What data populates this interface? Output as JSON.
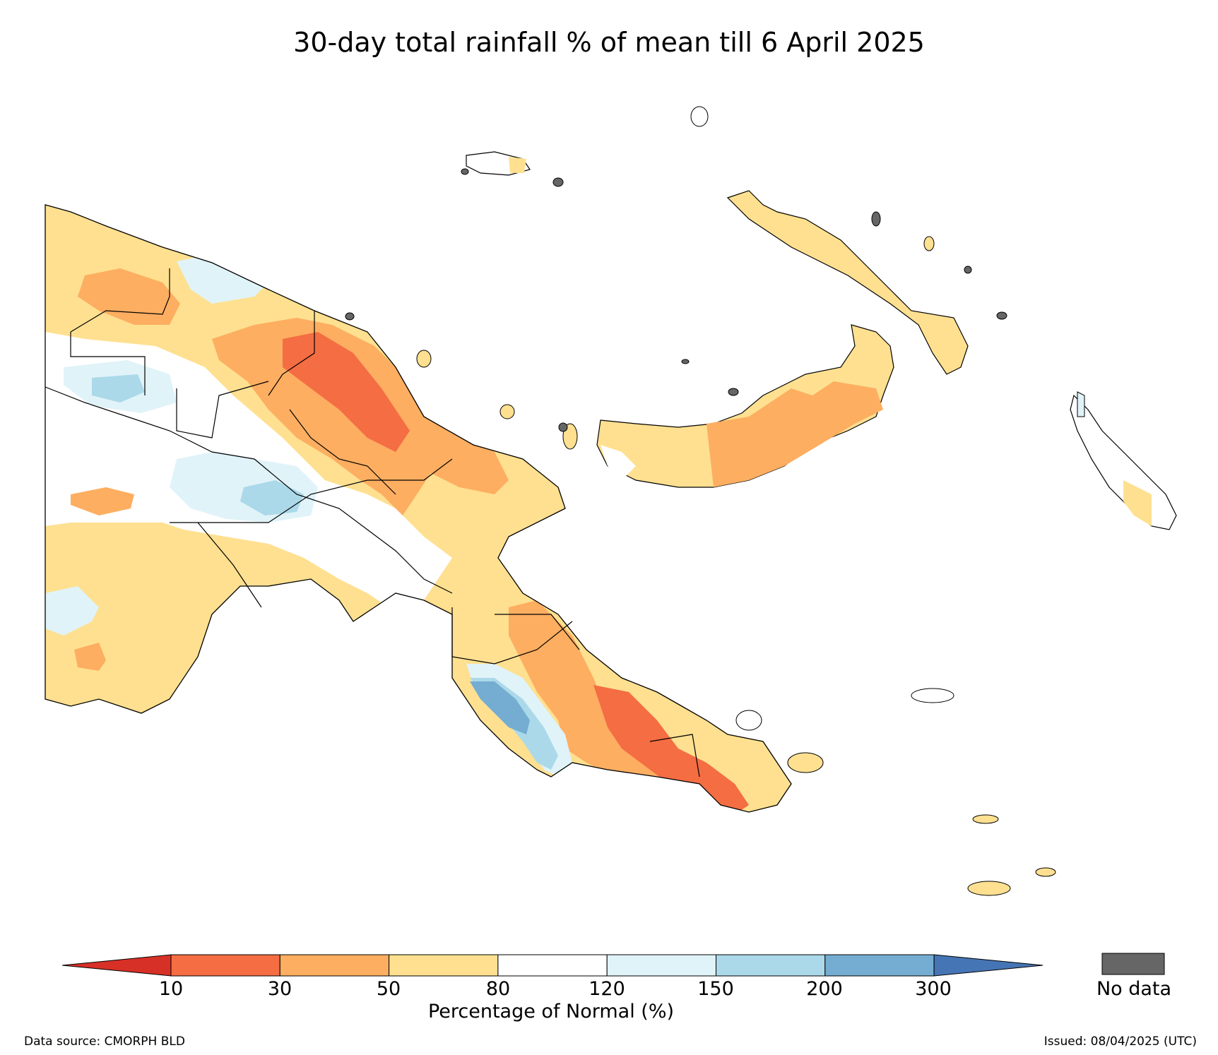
{
  "title": "30-day total rainfall % of mean till 6 April 2025",
  "colorbar": {
    "ticks": [
      "10",
      "30",
      "50",
      "80",
      "120",
      "150",
      "200",
      "300"
    ],
    "label": "Percentage of Normal (%)",
    "colors": {
      "below_10": "#d73027",
      "10_30": "#f46d43",
      "30_50": "#fdae61",
      "50_80": "#fee090",
      "80_120": "#ffffff",
      "120_150": "#e0f3f8",
      "150_200": "#abd9e9",
      "200_300": "#74add1",
      "above_300": "#4575b4"
    },
    "nodata_label": "No data",
    "nodata_color": "#666666"
  },
  "footer": {
    "source": "Data source: CMORPH BLD",
    "issued": "Issued: 08/04/2025 (UTC)"
  }
}
